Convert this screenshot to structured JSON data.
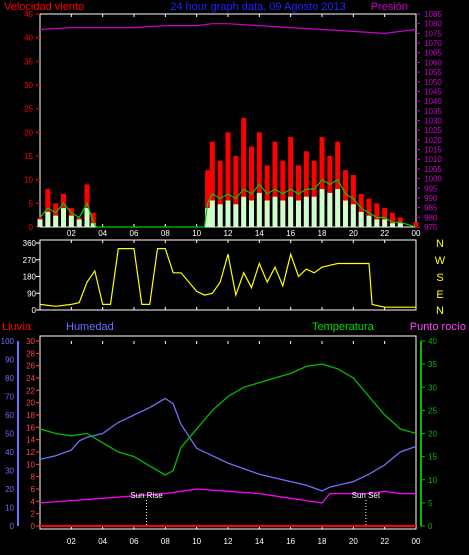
{
  "header": {
    "wind_label": "Velocidad viento",
    "title": "24 hour graph data, 09 Agosto 2013",
    "pressure_label": "Presión"
  },
  "mid": {
    "compass": [
      "N",
      "W",
      "S",
      "E",
      "N"
    ]
  },
  "lower_header": {
    "rain_label": "Lluvia",
    "humidity_label": "Humedad",
    "temperature_label": "Temperatura",
    "dewpoint_label": "Punto rocío"
  },
  "annotations": {
    "sunrise": "Sun Rise",
    "sunset": "Sun Set"
  },
  "colors": {
    "wind": "#ff0000",
    "wind_avg": "#00cc00",
    "wind_min": "#ccffcc",
    "pressure": "#cc00cc",
    "direction": "#ffff00",
    "humidity": "#6f6fff",
    "temperature": "#00bb00",
    "dewpoint": "#ff00ff",
    "rain": "#ff0000"
  },
  "chart_data": [
    {
      "type": "bar",
      "name_ref": "wind-pressure",
      "x_ticks": [
        "02",
        "04",
        "06",
        "08",
        "10",
        "12",
        "14",
        "16",
        "18",
        "20",
        "22",
        "00"
      ],
      "left_axis": {
        "ylim": [
          0,
          45
        ],
        "ticks": [
          0,
          5,
          10,
          15,
          20,
          25,
          30,
          35,
          40,
          45
        ]
      },
      "right_axis": {
        "ylim": [
          975,
          1085
        ],
        "ticks": [
          975,
          980,
          985,
          990,
          995,
          1000,
          1005,
          1010,
          1015,
          1020,
          1025,
          1030,
          1035,
          1040,
          1045,
          1050,
          1055,
          1060,
          1065,
          1070,
          1075,
          1080,
          1085
        ]
      },
      "series": [
        {
          "kind": "gust",
          "points": [
            [
              0,
              2
            ],
            [
              0.5,
              8
            ],
            [
              1,
              5
            ],
            [
              1.5,
              7
            ],
            [
              2,
              4
            ],
            [
              2.5,
              2
            ],
            [
              3,
              9
            ],
            [
              3.4,
              3
            ],
            [
              3.6,
              0
            ],
            [
              10.5,
              0
            ],
            [
              10.7,
              12
            ],
            [
              11,
              18
            ],
            [
              11.5,
              14
            ],
            [
              12,
              20
            ],
            [
              12.5,
              15
            ],
            [
              13,
              23
            ],
            [
              13.5,
              17
            ],
            [
              14,
              20
            ],
            [
              14.5,
              13
            ],
            [
              15,
              18
            ],
            [
              15.5,
              14
            ],
            [
              16,
              19
            ],
            [
              16.5,
              13
            ],
            [
              17,
              16
            ],
            [
              17.5,
              14
            ],
            [
              18,
              19
            ],
            [
              18.5,
              15
            ],
            [
              19,
              18
            ],
            [
              19.5,
              12
            ],
            [
              20,
              11
            ],
            [
              20.5,
              7
            ],
            [
              21,
              6
            ],
            [
              21.5,
              5
            ],
            [
              22,
              4
            ],
            [
              22.5,
              3
            ],
            [
              23,
              2
            ],
            [
              24,
              1
            ]
          ]
        },
        {
          "kind": "average",
          "points": [
            [
              0,
              2
            ],
            [
              0.5,
              4
            ],
            [
              1,
              3
            ],
            [
              1.5,
              5
            ],
            [
              2,
              3
            ],
            [
              2.5,
              2
            ],
            [
              3,
              5
            ],
            [
              3.4,
              1
            ],
            [
              3.6,
              0
            ],
            [
              10.5,
              0
            ],
            [
              10.7,
              5
            ],
            [
              11,
              7
            ],
            [
              11.5,
              6
            ],
            [
              12,
              7
            ],
            [
              12.5,
              6
            ],
            [
              13,
              8
            ],
            [
              13.5,
              7
            ],
            [
              14,
              9
            ],
            [
              14.5,
              7
            ],
            [
              15,
              8
            ],
            [
              15.5,
              7
            ],
            [
              16,
              8
            ],
            [
              16.5,
              7
            ],
            [
              17,
              8
            ],
            [
              17.5,
              8
            ],
            [
              18,
              10
            ],
            [
              18.5,
              9
            ],
            [
              19,
              10
            ],
            [
              19.5,
              7
            ],
            [
              20,
              6
            ],
            [
              20.5,
              4
            ],
            [
              21,
              3
            ],
            [
              21.5,
              2
            ],
            [
              22,
              2
            ],
            [
              22.5,
              1
            ],
            [
              23,
              1
            ],
            [
              24,
              0
            ]
          ]
        },
        {
          "kind": "pressure",
          "points": [
            [
              0,
              1077
            ],
            [
              2,
              1078
            ],
            [
              4,
              1078
            ],
            [
              6,
              1078
            ],
            [
              8,
              1079
            ],
            [
              10,
              1079
            ],
            [
              11,
              1080
            ],
            [
              12,
              1080
            ],
            [
              14,
              1079
            ],
            [
              16,
              1078
            ],
            [
              18,
              1077
            ],
            [
              20,
              1076
            ],
            [
              22,
              1075
            ],
            [
              23,
              1076
            ],
            [
              24,
              1077
            ]
          ]
        }
      ]
    },
    {
      "type": "line",
      "name_ref": "wind-direction",
      "x_ticks": [
        "02",
        "04",
        "06",
        "08",
        "10",
        "12",
        "14",
        "16",
        "18",
        "20",
        "22",
        "00"
      ],
      "ylim": [
        0,
        360
      ],
      "ticks": [
        0,
        90,
        180,
        270,
        360
      ],
      "series": [
        {
          "kind": "direction",
          "points": [
            [
              0,
              30
            ],
            [
              1,
              20
            ],
            [
              2,
              30
            ],
            [
              2.5,
              40
            ],
            [
              3,
              150
            ],
            [
              3.5,
              210
            ],
            [
              4,
              30
            ],
            [
              4.5,
              30
            ],
            [
              5,
              330
            ],
            [
              6,
              330
            ],
            [
              6.5,
              30
            ],
            [
              7,
              30
            ],
            [
              7.5,
              330
            ],
            [
              8,
              330
            ],
            [
              8.5,
              200
            ],
            [
              9,
              200
            ],
            [
              10,
              100
            ],
            [
              10.5,
              80
            ],
            [
              11,
              90
            ],
            [
              11.5,
              150
            ],
            [
              12,
              300
            ],
            [
              12.5,
              80
            ],
            [
              13,
              200
            ],
            [
              13.5,
              120
            ],
            [
              14,
              250
            ],
            [
              14.5,
              150
            ],
            [
              15,
              230
            ],
            [
              15.5,
              130
            ],
            [
              16,
              300
            ],
            [
              16.5,
              180
            ],
            [
              17,
              220
            ],
            [
              17.5,
              200
            ],
            [
              18,
              230
            ],
            [
              18.5,
              240
            ],
            [
              19,
              250
            ],
            [
              20,
              250
            ],
            [
              21,
              250
            ],
            [
              21.2,
              30
            ],
            [
              22,
              15
            ],
            [
              23,
              15
            ],
            [
              24,
              15
            ]
          ]
        }
      ]
    },
    {
      "type": "line",
      "name_ref": "temp-hum",
      "x_ticks": [
        "02",
        "04",
        "06",
        "08",
        "10",
        "12",
        "14",
        "16",
        "18",
        "20",
        "22",
        "00"
      ],
      "humidity_axis": {
        "ylim": [
          0,
          100
        ],
        "ticks": [
          0,
          10,
          20,
          30,
          40,
          50,
          60,
          70,
          80,
          90,
          100
        ]
      },
      "rain_axis": {
        "ylim": [
          0,
          30
        ],
        "ticks": [
          0,
          2,
          4,
          6,
          8,
          10,
          12,
          14,
          16,
          18,
          20,
          22,
          24,
          26,
          28,
          30
        ]
      },
      "temp_axis": {
        "ylim": [
          0,
          40
        ],
        "ticks": [
          0,
          5,
          10,
          15,
          20,
          25,
          30,
          35,
          40
        ]
      },
      "series": [
        {
          "kind": "humidity",
          "points": [
            [
              0,
              36
            ],
            [
              1,
              38
            ],
            [
              2,
              41
            ],
            [
              2.5,
              46
            ],
            [
              3,
              48
            ],
            [
              4,
              50
            ],
            [
              5,
              56
            ],
            [
              6,
              60
            ],
            [
              7,
              64
            ],
            [
              8,
              69
            ],
            [
              8.5,
              66
            ],
            [
              9,
              55
            ],
            [
              10,
              42
            ],
            [
              11,
              38
            ],
            [
              12,
              34
            ],
            [
              14,
              28
            ],
            [
              16,
              24
            ],
            [
              17,
              22
            ],
            [
              18,
              19
            ],
            [
              18.5,
              21
            ],
            [
              19,
              22
            ],
            [
              20,
              24
            ],
            [
              21,
              28
            ],
            [
              22,
              33
            ],
            [
              23,
              40
            ],
            [
              24,
              43
            ]
          ]
        },
        {
          "kind": "temperature",
          "points": [
            [
              0,
              21
            ],
            [
              1,
              20
            ],
            [
              2,
              19.5
            ],
            [
              3,
              20
            ],
            [
              4,
              18
            ],
            [
              5,
              16
            ],
            [
              6,
              15
            ],
            [
              7,
              13
            ],
            [
              8,
              11
            ],
            [
              8.5,
              12
            ],
            [
              9,
              17
            ],
            [
              10,
              21
            ],
            [
              11,
              25
            ],
            [
              12,
              28
            ],
            [
              13,
              30
            ],
            [
              14,
              31
            ],
            [
              15,
              32
            ],
            [
              16,
              33
            ],
            [
              17,
              34.5
            ],
            [
              18,
              35
            ],
            [
              19,
              34
            ],
            [
              20,
              32
            ],
            [
              21,
              28
            ],
            [
              22,
              24
            ],
            [
              23,
              21
            ],
            [
              24,
              20
            ]
          ]
        },
        {
          "kind": "dewpoint",
          "points": [
            [
              0,
              5
            ],
            [
              2,
              5.5
            ],
            [
              4,
              6
            ],
            [
              6,
              6.5
            ],
            [
              8,
              7
            ],
            [
              9,
              7.5
            ],
            [
              10,
              8
            ],
            [
              12,
              7.5
            ],
            [
              14,
              7
            ],
            [
              16,
              6
            ],
            [
              17,
              5.5
            ],
            [
              18,
              5
            ],
            [
              18.5,
              7
            ],
            [
              19,
              7
            ],
            [
              20,
              7
            ],
            [
              21,
              7
            ],
            [
              22,
              7.5
            ],
            [
              23,
              7
            ],
            [
              24,
              7
            ]
          ]
        },
        {
          "kind": "rain",
          "points": [
            [
              0,
              0
            ],
            [
              24,
              0
            ]
          ]
        }
      ],
      "sunrise_hour": 6.8,
      "sunset_hour": 20.8
    }
  ]
}
